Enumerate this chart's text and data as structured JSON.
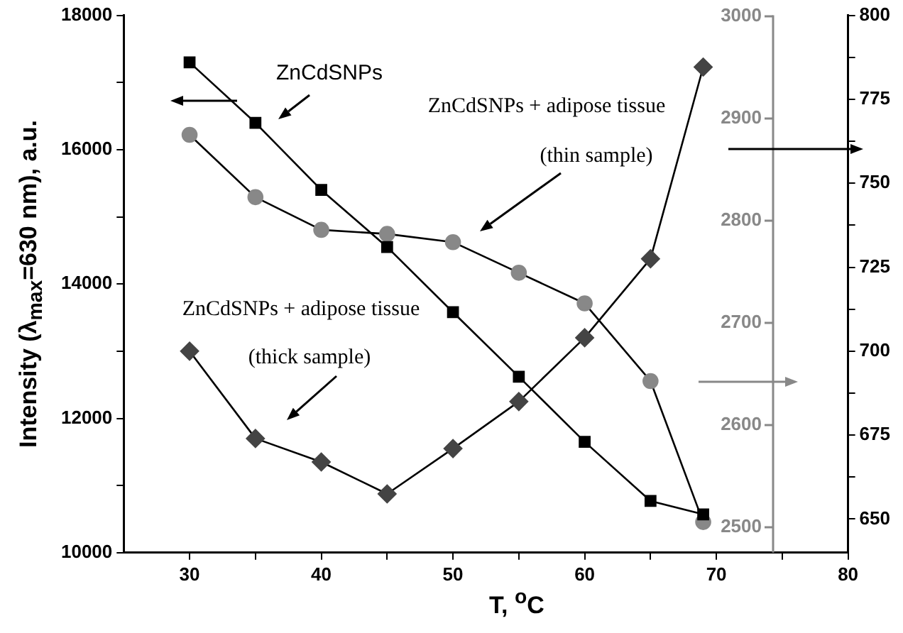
{
  "chart_data": {
    "type": "line",
    "xlabel": "T, $^{o}$C",
    "ylabel": "Intensity (λ$_{max}$=630 nm), a.u.",
    "annotations": [
      "ZnCdSNPs",
      "ZnCdSNPs + adipose tissue",
      "(thin sample)",
      "ZnCdSNPs + adipose tissue",
      "(thick sample)"
    ],
    "x": [
      30,
      35,
      40,
      45,
      50,
      55,
      60,
      65,
      69
    ],
    "series": [
      {
        "color": "#000000",
        "marker": "square",
        "values": [
          17300,
          16400,
          15400,
          14550,
          13580,
          12620,
          11650,
          10770,
          10570
        ]
      },
      {
        "color": "#888888",
        "marker": "circle",
        "axis": "y2",
        "values": [
          2883,
          2822,
          2790,
          2786,
          2778,
          2748,
          2718,
          2642,
          2504
        ]
      },
      {
        "color": "#444444",
        "marker": "diamond",
        "axis": "y3",
        "values": [
          700,
          674,
          667,
          657.5,
          671,
          685,
          704,
          727.5,
          784.6
        ]
      }
    ],
    "xlim": [
      25,
      80
    ],
    "xticks": [
      30,
      {
        "value": 35,
        "label": null
      },
      40,
      {
        "value": 45,
        "label": null
      },
      50,
      {
        "value": 55,
        "label": null
      },
      60,
      {
        "value": 65,
        "label": null
      },
      70,
      {
        "value": 75,
        "label": null
      },
      80
    ],
    "ylim": [
      10000,
      18000
    ],
    "yticks": [
      10000,
      {
        "value": 11000,
        "label": null
      },
      12000,
      {
        "value": 13000,
        "label": null
      },
      14000,
      {
        "value": 15000,
        "label": null
      },
      16000,
      {
        "value": 17000,
        "label": null
      },
      18000
    ],
    "y2lim": [
      2474,
      3000
    ],
    "y2ticks": [
      2500,
      2600,
      2700,
      2800,
      2900,
      3000
    ],
    "y3lim": [
      640,
      800
    ],
    "y3ticks": [
      650,
      {
        "value": 662.5,
        "label": null
      },
      675,
      {
        "value": 687.5,
        "label": null
      },
      700,
      {
        "value": 712.5,
        "label": null
      },
      725,
      {
        "value": 737.5,
        "label": null
      },
      750,
      {
        "value": 762.5,
        "label": null
      },
      775,
      {
        "value": 787.5,
        "label": null
      },
      800
    ],
    "grid": false,
    "legend": false,
    "line_style": "solid"
  }
}
